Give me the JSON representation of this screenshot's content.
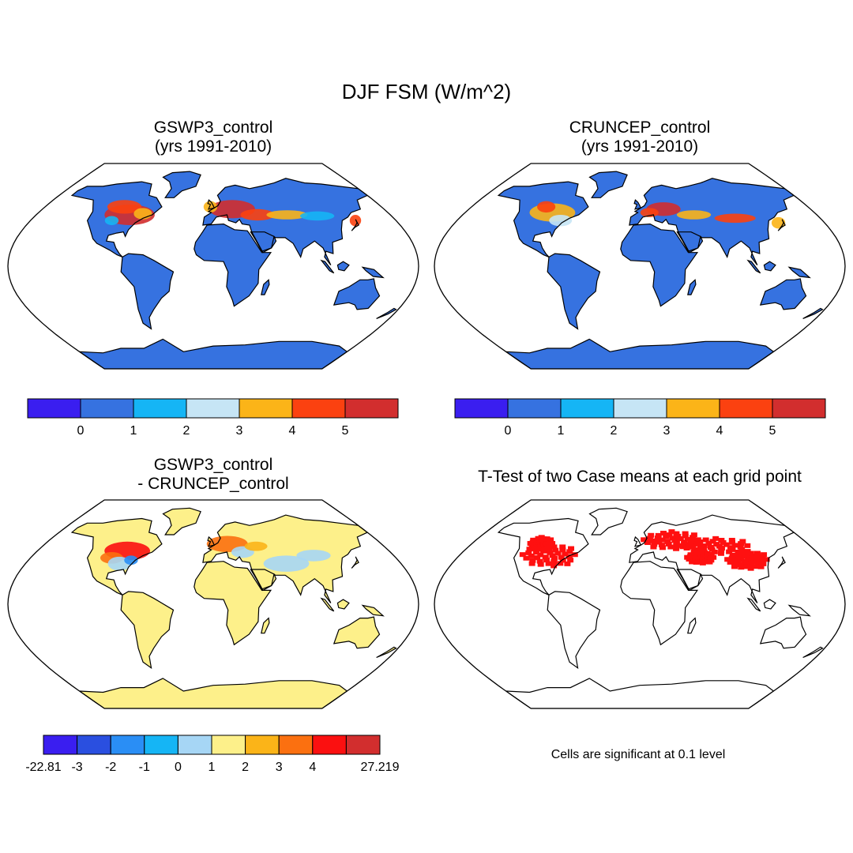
{
  "figure": {
    "title": "DJF FSM (W/m^2)"
  },
  "panels": {
    "gswp3": {
      "title_line1": "GSWP3_control",
      "title_line2": "(yrs 1991-2010)",
      "colorbar": {
        "colors": [
          "#3a1ef0",
          "#3672e0",
          "#15b5f5",
          "#c6e5f5",
          "#fbb418",
          "#fb4110",
          "#d22e2e"
        ],
        "labels": [
          "0",
          "1",
          "2",
          "3",
          "4",
          "5"
        ]
      }
    },
    "cruncep": {
      "title_line1": "CRUNCEP_control",
      "title_line2": "(yrs 1991-2010)",
      "colorbar": {
        "colors": [
          "#3a1ef0",
          "#3672e0",
          "#15b5f5",
          "#c6e5f5",
          "#fbb418",
          "#fb4110",
          "#d22e2e"
        ],
        "labels": [
          "0",
          "1",
          "2",
          "3",
          "4",
          "5"
        ]
      }
    },
    "difference": {
      "title_line1": "GSWP3_control",
      "title_line2": "- CRUNCEP_control",
      "colorbar": {
        "colors": [
          "#3a1ef0",
          "#2a4fe0",
          "#2a8ef5",
          "#15b5f5",
          "#a6d6f5",
          "#fdf08a",
          "#fbb418",
          "#fb7010",
          "#fb1010",
          "#d22e2e"
        ],
        "labels": [
          "-22.81",
          "-3",
          "-2",
          "-1",
          "0",
          "1",
          "2",
          "3",
          "4",
          "27.219"
        ]
      }
    },
    "ttest": {
      "title": "T-Test of two Case means at each grid point",
      "note": "Cells are significant at 0.1 level",
      "significant_color": "#ff1010"
    }
  }
}
